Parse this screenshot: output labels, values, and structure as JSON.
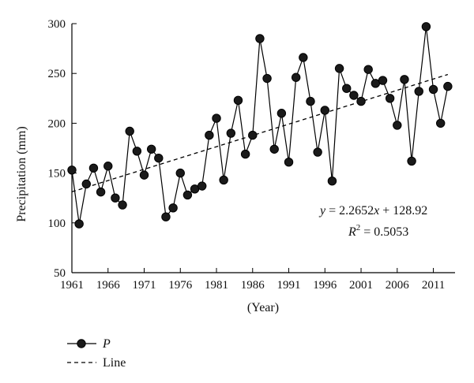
{
  "chart_data": {
    "type": "line",
    "xlabel": "(Year)",
    "ylabel": "Precipitation (mm)",
    "xlim": [
      1961,
      2014
    ],
    "ylim": [
      50,
      300
    ],
    "x_ticks": [
      1961,
      1966,
      1971,
      1976,
      1981,
      1986,
      1991,
      1996,
      2001,
      2006,
      2011
    ],
    "y_ticks": [
      50,
      100,
      150,
      200,
      250,
      300
    ],
    "grid": false,
    "series": [
      {
        "name": "P",
        "style": "line-with-circle-markers",
        "color": "#000000",
        "marker_fill": "#1a1a1a",
        "x": [
          1961,
          1962,
          1963,
          1964,
          1965,
          1966,
          1967,
          1968,
          1969,
          1970,
          1971,
          1972,
          1973,
          1974,
          1975,
          1976,
          1977,
          1978,
          1979,
          1980,
          1981,
          1982,
          1983,
          1984,
          1985,
          1986,
          1987,
          1988,
          1989,
          1990,
          1991,
          1992,
          1993,
          1994,
          1995,
          1996,
          1997,
          1998,
          1999,
          2000,
          2001,
          2002,
          2003,
          2004,
          2005,
          2006,
          2007,
          2008,
          2009,
          2010,
          2011,
          2012,
          2013
        ],
        "values": [
          153,
          99,
          139,
          155,
          131,
          157,
          125,
          118,
          192,
          172,
          148,
          174,
          165,
          106,
          115,
          150,
          128,
          134,
          137,
          188,
          205,
          143,
          190,
          223,
          169,
          188,
          285,
          245,
          174,
          210,
          161,
          246,
          266,
          222,
          171,
          213,
          142,
          255,
          235,
          228,
          222,
          254,
          240,
          243,
          225,
          198,
          244,
          162,
          232,
          297,
          234,
          200,
          237
        ]
      },
      {
        "name": "Line",
        "style": "dashed",
        "color": "#000000",
        "slope": 2.2652,
        "intercept": 128.92,
        "x_range": [
          1961,
          2013
        ]
      }
    ],
    "annotation": {
      "y_sym": "y",
      "eq_mid": " = 2.2652",
      "x_sym": "x",
      "eq_tail": " + 128.92",
      "r_sym": "R",
      "r_exp": "2",
      "r_tail": " = 0.5053"
    },
    "legend": {
      "placement": "bottom-left",
      "items": [
        "P",
        "Line"
      ]
    }
  }
}
